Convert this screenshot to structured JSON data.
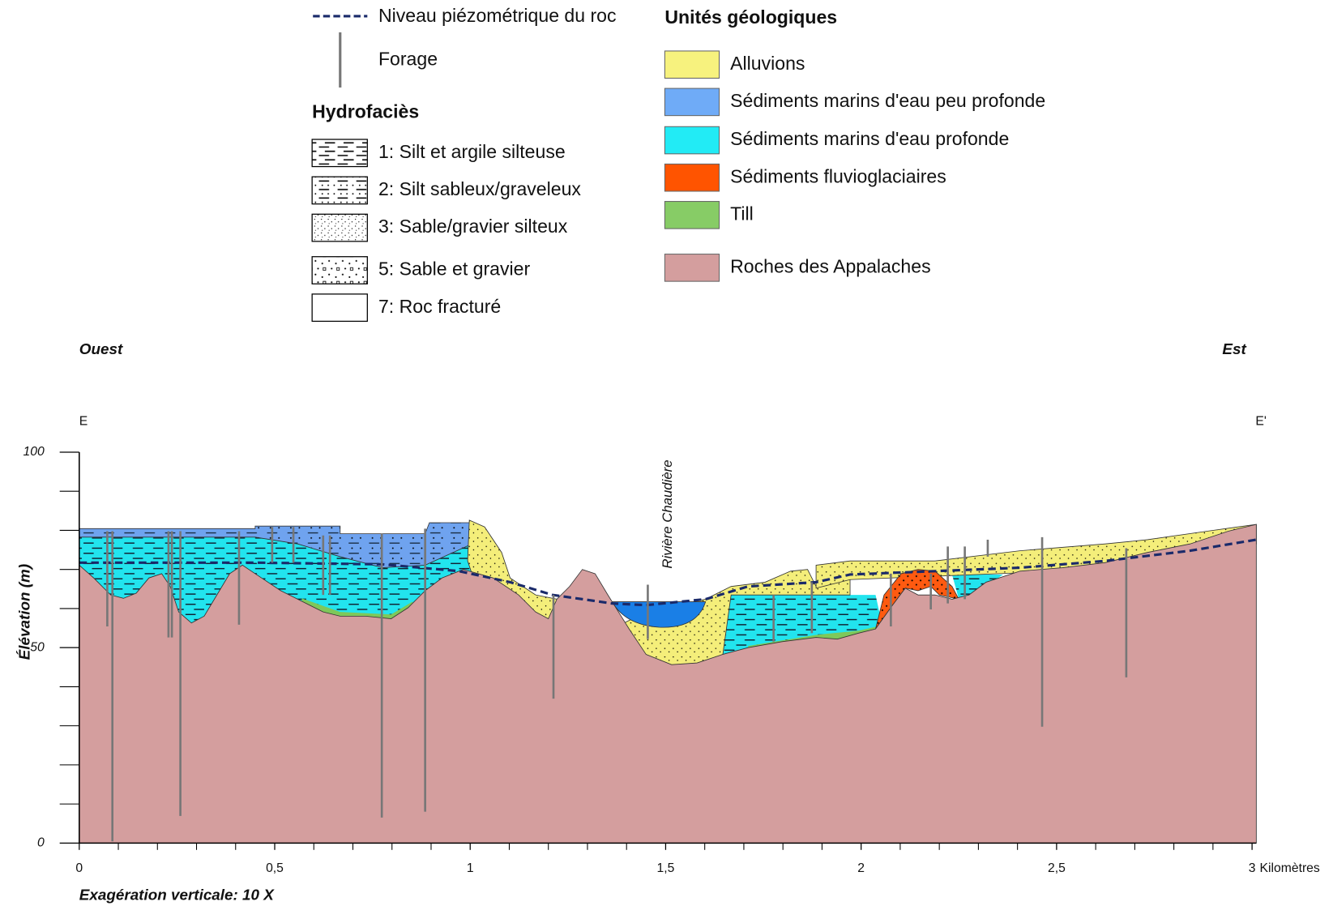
{
  "legend": {
    "water_table": "Niveau piézométrique du roc",
    "borehole": "Forage",
    "hydrofacies_title": "Hydrofaciès",
    "hydrofacies": [
      "1: Silt et argile silteuse",
      "2: Silt sableux/graveleux",
      "3: Sable/gravier silteux",
      "5: Sable et gravier",
      "7: Roc fracturé"
    ],
    "units_title": "Unités géologiques",
    "units": [
      {
        "label": "Alluvions",
        "color": "#f7f27e"
      },
      {
        "label": "Sédiments marins d'eau peu profonde",
        "color": "#6fabf7"
      },
      {
        "label": "Sédiments marins d'eau profonde",
        "color": "#22ebf5"
      },
      {
        "label": "Sédiments fluvioglaciaires",
        "color": "#ff5400"
      },
      {
        "label": "Till",
        "color": "#87cc66"
      },
      {
        "label": "Roches des Appalaches",
        "color": "#d49e9e"
      }
    ]
  },
  "section": {
    "west": "Ouest",
    "east": "Est",
    "start": "E",
    "end": "E'",
    "river": "Rivière Chaudière",
    "y_axis_title": "Élévation (m)",
    "x_unit": "Kilomètres",
    "note": "Exagération verticale: 10 X",
    "xlim": [
      0,
      3
    ],
    "ylim": [
      0,
      100
    ],
    "xticks": [
      0,
      {
        "value": 0.5,
        "label": "0,5"
      },
      1,
      {
        "value": 1.5,
        "label": "1,5"
      },
      2,
      {
        "value": 2.5,
        "label": "2,5"
      },
      3
    ],
    "yticks": [
      0,
      50,
      100
    ]
  }
}
